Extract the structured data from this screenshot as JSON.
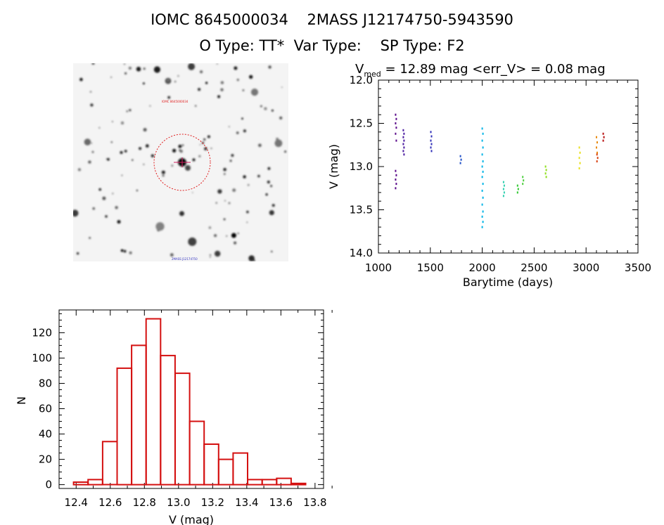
{
  "header": {
    "line1": "IOMC 8645000034    2MASS J12174750-5943590",
    "line2": "O Type: TT*  Var Type:    SP Type: F2"
  },
  "finder": {
    "label_top": "IOMC 8645000034",
    "label_bottom": "2MASS J12174750"
  },
  "chart_data": [
    {
      "type": "scatter",
      "title_parts": {
        "v": "V",
        "sub": "med",
        "rest": " = 12.89 mag <err_V> = 0.08 mag"
      },
      "xlabel": "Barytime (days)",
      "ylabel": "V (mag)",
      "xlim": [
        1000,
        3500
      ],
      "ylim": [
        14.0,
        12.0
      ],
      "y_inverted": true,
      "xticks": [
        1000,
        1500,
        2000,
        2500,
        3000,
        3500
      ],
      "yticks": [
        12.0,
        12.5,
        13.0,
        13.5,
        14.0
      ],
      "ytick_labels": [
        "12.0",
        "12.5",
        "13.0",
        "13.5",
        "14.0"
      ],
      "groups": [
        {
          "color": "#5a0a8a",
          "x": 1165,
          "y": [
            12.4,
            12.45,
            12.5,
            12.55,
            12.62,
            12.7,
            13.05,
            13.1,
            13.15,
            13.2,
            13.25
          ]
        },
        {
          "color": "#4a1aa0",
          "x": 1240,
          "y": [
            12.58,
            12.62,
            12.66,
            12.7,
            12.74,
            12.78,
            12.82,
            12.86
          ]
        },
        {
          "color": "#3030b8",
          "x": 1505,
          "y": [
            12.6,
            12.65,
            12.7,
            12.74,
            12.78,
            12.82
          ]
        },
        {
          "color": "#2050c8",
          "x": 1790,
          "y": [
            12.88,
            12.92,
            12.96
          ]
        },
        {
          "color": "#00b4e6",
          "x": 2000,
          "y": [
            12.56,
            12.62,
            12.7,
            12.78,
            12.86,
            12.94,
            13.0,
            13.06,
            13.12,
            13.2,
            13.28,
            13.36,
            13.44,
            13.52,
            13.58,
            13.64,
            13.7
          ]
        },
        {
          "color": "#30d0b0",
          "x": 2205,
          "y": [
            13.18,
            13.22,
            13.26,
            13.3,
            13.34
          ]
        },
        {
          "color": "#30c830",
          "x": 2340,
          "y": [
            13.22,
            13.26,
            13.3
          ]
        },
        {
          "color": "#50d040",
          "x": 2390,
          "y": [
            13.12,
            13.16,
            13.2
          ]
        },
        {
          "color": "#90e020",
          "x": 2610,
          "y": [
            13.0,
            13.04,
            13.08,
            13.12
          ]
        },
        {
          "color": "#e8e020",
          "x": 2935,
          "y": [
            12.78,
            12.84,
            12.9,
            12.96,
            13.02
          ]
        },
        {
          "color": "#e88a10",
          "x": 3100,
          "y": [
            12.66,
            12.72,
            12.78,
            12.84
          ]
        },
        {
          "color": "#d84010",
          "x": 3105,
          "y": [
            12.86,
            12.9,
            12.94
          ]
        },
        {
          "color": "#b81010",
          "x": 3165,
          "y": [
            12.62,
            12.66,
            12.7
          ]
        }
      ]
    },
    {
      "type": "bar",
      "xlabel": "V (mag)",
      "ylabel": "N",
      "xlim": [
        12.3,
        13.85
      ],
      "ylim": [
        -3,
        138
      ],
      "xticks": [
        12.4,
        12.6,
        12.8,
        13.0,
        13.2,
        13.4,
        13.6,
        13.8
      ],
      "xtick_labels": [
        "12.4",
        "12.6",
        "12.8",
        "13.0",
        "13.2",
        "13.4",
        "13.6",
        "13.8"
      ],
      "yticks": [
        0,
        20,
        40,
        60,
        80,
        100,
        120
      ],
      "bin_width": 0.085,
      "bin_start": 12.385,
      "values": [
        2,
        4,
        34,
        92,
        110,
        131,
        102,
        88,
        50,
        32,
        20,
        25,
        4,
        4,
        5,
        1
      ],
      "bar_color": "#d41010"
    }
  ]
}
